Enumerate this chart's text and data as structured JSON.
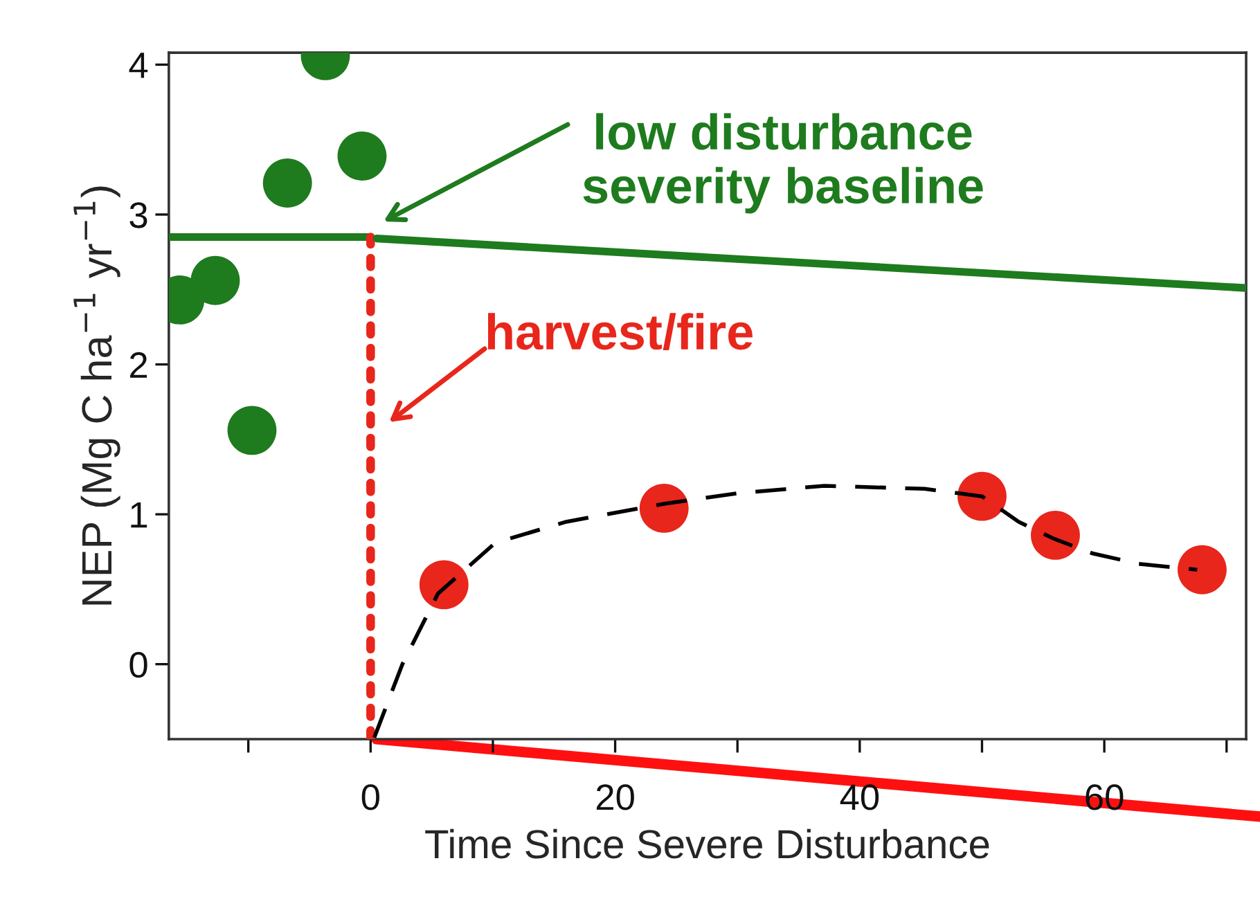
{
  "chart_data": {
    "type": "scatter",
    "xlabel": "Time Since Severe Disturbance",
    "ylabel": "NEP (Mg C ha$^{−1}$ yr$^{−1}$)",
    "series": [
      {
        "color": "#1e7b1e",
        "x": [
          -15.6,
          -12.7,
          -9.7,
          -6.8,
          -3.7,
          -0.7
        ],
        "values": [
          2.43,
          2.56,
          1.56,
          3.21,
          4.06,
          3.39
        ]
      },
      {
        "color": "#e8261b",
        "x": [
          6,
          24,
          50,
          56,
          68
        ],
        "values": [
          0.53,
          1.04,
          1.12,
          0.86,
          0.63
        ]
      },
      {
        "type": "line",
        "color": "#000000",
        "line_style": "dashed",
        "marker": "none",
        "x": [
          0.3,
          2.6,
          5.5,
          10.2,
          16,
          24,
          30,
          37.1,
          45.3,
          50,
          53,
          55.8,
          59,
          62.8,
          67.6
        ],
        "values": [
          -0.49,
          0,
          0.47,
          0.81,
          0.95,
          1.07,
          1.14,
          1.19,
          1.17,
          1.12,
          0.95,
          0.84,
          0.74,
          0.67,
          0.63
        ]
      },
      {
        "type": "line",
        "color": "#1e7b1e",
        "line_style": "solid",
        "marker": "none",
        "x": [
          0.5,
          71.6
        ],
        "values": [
          2.84,
          2.51
        ]
      }
    ],
    "marker": "circle",
    "xlim": [
      -16.5,
      71.6
    ],
    "ylim": [
      -0.5,
      4.08
    ],
    "xticks": [
      {
        "value": -10,
        "label": null
      },
      0,
      {
        "value": 10,
        "label": null
      },
      20,
      {
        "value": 30,
        "label": null
      },
      40,
      {
        "value": 50,
        "label": null
      },
      60,
      {
        "value": 70,
        "label": null
      }
    ],
    "yticks": [
      0,
      1,
      2,
      3,
      4
    ],
    "ref_lines": [
      {
        "axis": "y",
        "value": 2.85,
        "color": "#1e7b1e",
        "line_style": "solid"
      },
      {
        "axis": "x",
        "value": 0,
        "color": "#e8261b",
        "line_style": "dotted"
      }
    ],
    "annotations": [
      "low disturbance\nseverity baseline",
      "harvest/fire"
    ],
    "grid": false,
    "legend": false
  }
}
